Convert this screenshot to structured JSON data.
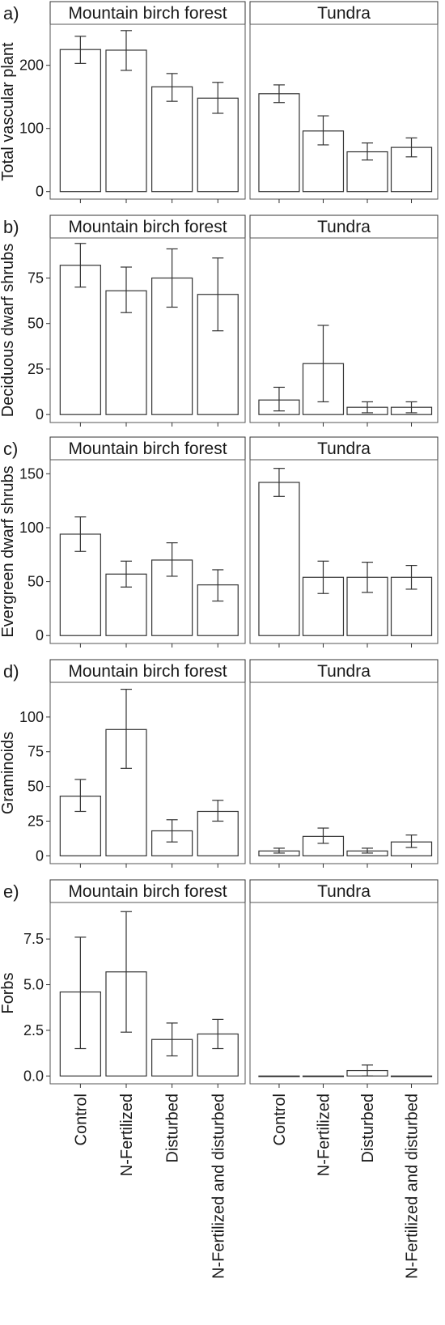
{
  "strip_labels": {
    "forest": "Mountain birch forest",
    "tundra": "Tundra"
  },
  "x_categories": [
    "Control",
    "N-Fertilized",
    "Disturbed",
    "N-Fertilized and disturbed"
  ],
  "chart_data": [
    {
      "type": "bar",
      "panel_label": "a)",
      "ylabel": "Total vascular plant",
      "ylim": [
        0,
        265
      ],
      "yticks": [
        0,
        100,
        200
      ],
      "facets": [
        {
          "name": "Mountain birch forest",
          "categories": [
            "Control",
            "N-Fertilized",
            "Disturbed",
            "N-Fertilized and disturbed"
          ],
          "values": [
            225,
            224,
            166,
            148
          ],
          "error_low": [
            203,
            192,
            143,
            124
          ],
          "error_high": [
            246,
            255,
            187,
            173
          ]
        },
        {
          "name": "Tundra",
          "categories": [
            "Control",
            "N-Fertilized",
            "Disturbed",
            "N-Fertilized and disturbed"
          ],
          "values": [
            155,
            96,
            63,
            70
          ],
          "error_low": [
            141,
            74,
            50,
            55
          ],
          "error_high": [
            169,
            120,
            77,
            85
          ]
        }
      ]
    },
    {
      "type": "bar",
      "panel_label": "b)",
      "ylabel": "Deciduous dwarf shrubs",
      "ylim": [
        0,
        97
      ],
      "yticks": [
        0,
        25,
        50,
        75
      ],
      "facets": [
        {
          "name": "Mountain birch forest",
          "categories": [
            "Control",
            "N-Fertilized",
            "Disturbed",
            "N-Fertilized and disturbed"
          ],
          "values": [
            82,
            68,
            75,
            66
          ],
          "error_low": [
            70,
            56,
            59,
            46
          ],
          "error_high": [
            94,
            81,
            91,
            86
          ]
        },
        {
          "name": "Tundra",
          "categories": [
            "Control",
            "N-Fertilized",
            "Disturbed",
            "N-Fertilized and disturbed"
          ],
          "values": [
            8,
            28,
            4,
            4
          ],
          "error_low": [
            2,
            7,
            1,
            1
          ],
          "error_high": [
            15,
            49,
            7,
            7
          ]
        }
      ]
    },
    {
      "type": "bar",
      "panel_label": "c)",
      "ylabel": "Evergreen dwarf shrubs",
      "ylim": [
        0,
        163
      ],
      "yticks": [
        0,
        50,
        100,
        150
      ],
      "facets": [
        {
          "name": "Mountain birch forest",
          "categories": [
            "Control",
            "N-Fertilized",
            "Disturbed",
            "N-Fertilized and disturbed"
          ],
          "values": [
            94,
            57,
            70,
            47
          ],
          "error_low": [
            78,
            45,
            55,
            32
          ],
          "error_high": [
            110,
            69,
            86,
            61
          ]
        },
        {
          "name": "Tundra",
          "categories": [
            "Control",
            "N-Fertilized",
            "Disturbed",
            "N-Fertilized and disturbed"
          ],
          "values": [
            142,
            54,
            54,
            54
          ],
          "error_low": [
            129,
            39,
            40,
            43
          ],
          "error_high": [
            155,
            69,
            68,
            65
          ]
        }
      ]
    },
    {
      "type": "bar",
      "panel_label": "d)",
      "ylabel": "Graminoids",
      "ylim": [
        0,
        125
      ],
      "yticks": [
        0,
        25,
        50,
        75,
        100
      ],
      "facets": [
        {
          "name": "Mountain birch forest",
          "categories": [
            "Control",
            "N-Fertilized",
            "Disturbed",
            "N-Fertilized and disturbed"
          ],
          "values": [
            43,
            91,
            18,
            32
          ],
          "error_low": [
            32,
            63,
            10,
            25
          ],
          "error_high": [
            55,
            120,
            26,
            40
          ]
        },
        {
          "name": "Tundra",
          "categories": [
            "Control",
            "N-Fertilized",
            "Disturbed",
            "N-Fertilized and disturbed"
          ],
          "values": [
            3.5,
            14,
            3.5,
            10
          ],
          "error_low": [
            2,
            9,
            2,
            6
          ],
          "error_high": [
            5.5,
            20,
            5.5,
            15
          ]
        }
      ]
    },
    {
      "type": "bar",
      "panel_label": "e)",
      "ylabel": "Forbs",
      "ylim": [
        0,
        9.5
      ],
      "yticks": [
        0.0,
        2.5,
        5.0,
        7.5
      ],
      "facets": [
        {
          "name": "Mountain birch forest",
          "categories": [
            "Control",
            "N-Fertilized",
            "Disturbed",
            "N-Fertilized and disturbed"
          ],
          "values": [
            4.6,
            5.7,
            2.0,
            2.3
          ],
          "error_low": [
            1.5,
            2.4,
            1.1,
            1.5
          ],
          "error_high": [
            7.6,
            9.0,
            2.9,
            3.1
          ]
        },
        {
          "name": "Tundra",
          "categories": [
            "Control",
            "N-Fertilized",
            "Disturbed",
            "N-Fertilized and disturbed"
          ],
          "values": [
            0.0,
            0.0,
            0.3,
            0.0
          ],
          "error_low": [
            0.0,
            0.0,
            0.0,
            0.0
          ],
          "error_high": [
            0.0,
            0.0,
            0.6,
            0.0
          ]
        }
      ]
    }
  ]
}
